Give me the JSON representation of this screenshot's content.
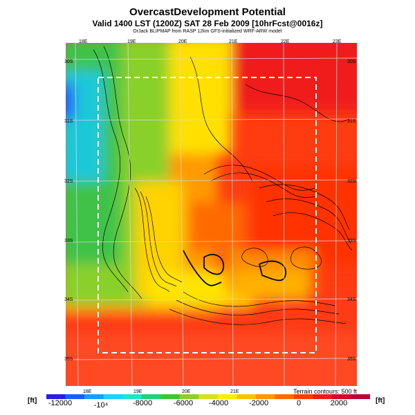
{
  "header": {
    "title": "OvercastDevelopment Potential",
    "valid_line": "Valid 1400 LST (1200Z) SAT 28 Feb 2009 [10hrFcst@0016z]",
    "credit_line": "DrJack BLIPMAP from RASP 12km GFS-initialized WRF-ARW model"
  },
  "map": {
    "terrain_note": "Terrain contours: 500 ft",
    "lon_labels_top": [
      "18E",
      "19E",
      "20E",
      "21E",
      "22E",
      "23E"
    ],
    "lon_labels_bottom": [
      "18E",
      "19E",
      "20E",
      "21E"
    ],
    "lat_labels_left": [
      "30S",
      "31S",
      "32S",
      "33S",
      "34S",
      "35S"
    ],
    "lat_labels_right": [
      "30S",
      "31S",
      "32S",
      "33S",
      "34S",
      "35S"
    ]
  },
  "colorbar": {
    "unit_left": "[ft]",
    "unit_right": "[ft]",
    "tick_labels": [
      "-12000",
      "-10⁴",
      "-8000",
      "-6000",
      "-4000",
      "-2000",
      "0",
      "2000"
    ],
    "colors": [
      "#2a1ee6",
      "#1f5aff",
      "#1a9cff",
      "#19d3ff",
      "#19e8c8",
      "#22d27a",
      "#3fc23b",
      "#8fce2f",
      "#d8e01e",
      "#ffee00",
      "#ffc200",
      "#ff9600",
      "#ff6a00",
      "#ff3c00",
      "#f01a1a",
      "#d4002a",
      "#b8003a"
    ]
  }
}
